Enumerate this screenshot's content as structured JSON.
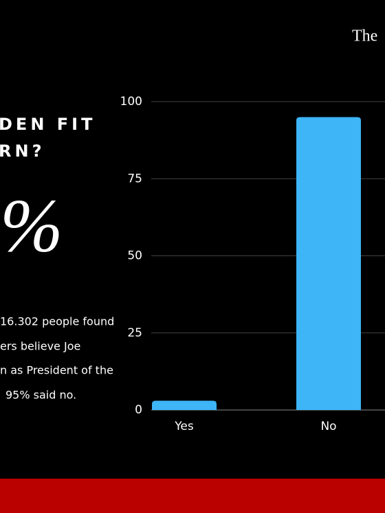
{
  "header": {
    "brand": "The"
  },
  "headline": [
    "DEN FIT",
    "RN?"
  ],
  "big_stat": "%",
  "body_lines": [
    "16.302 people found",
    "ers believe Joe",
    "n as President of the",
    "95% said no."
  ],
  "chart_data": {
    "type": "bar",
    "categories": [
      "Yes",
      "No"
    ],
    "values": [
      3,
      95
    ],
    "color": "#3db5f7",
    "ylim": [
      0,
      100
    ],
    "yticks": [
      0,
      25,
      50,
      75,
      100
    ],
    "grid": true
  }
}
